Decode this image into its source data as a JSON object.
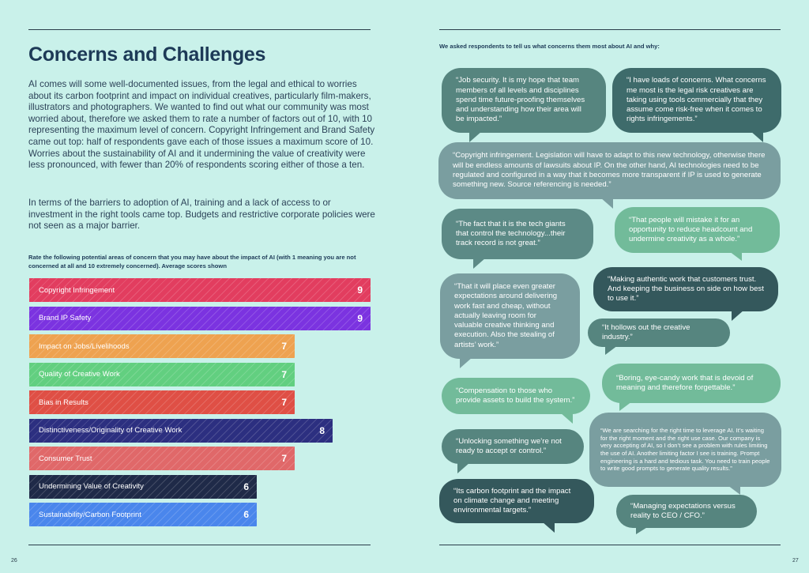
{
  "page": {
    "title": "Concerns and Challenges",
    "para1": "AI comes will some well-documented issues, from the legal and ethical to worries about its carbon footprint and impact on individual creatives, particularly film-makers, illustrators and photographers. We wanted to find out what our community was most worried about, therefore we asked them to rate a number of factors out of 10, with 10 representing the maximum level of concern. Copyright Infringement and Brand Safety came out top: half of respondents gave each of those issues a maximum score of 10. Worries about the sustainability of AI and it undermining the value of creativity were less pronounced, with fewer than 20% of respondents scoring either of those a ten.",
    "para2": "In terms of the barriers to adoption of AI, training and a lack of access to or investment in the right tools came top. Budgets and restrictive corporate policies were not seen as a major barrier.",
    "chart_caption": "Rate the following potential areas of concern that you may have about the impact of AI (with 1 meaning you are not concerned at all and 10 extremely concerned). Average scores shown",
    "page_left": "26",
    "page_right": "27",
    "quotes_intro": "We asked respondents to tell us what concerns them most about AI and why:"
  },
  "chart_data": {
    "type": "bar",
    "orientation": "horizontal",
    "categories": [
      "Copyright Infringement",
      "Brand IP Safety",
      "Impact on Jobs/Livelihoods",
      "Quality of Creative Work",
      "Bias in Results",
      "Distinctiveness/Originality of Creative Work",
      "Consumer Trust",
      "Undermining Value of Creativity",
      "Sustainability/Carbon Footprint"
    ],
    "values": [
      9,
      9,
      7,
      7,
      7,
      8,
      7,
      6,
      6
    ],
    "colors": [
      "#e23d5f",
      "#7b33e0",
      "#eea250",
      "#62cf80",
      "#df4f45",
      "#2c2f80",
      "#e06869",
      "#1f2a48",
      "#4a86ec"
    ],
    "xlim": [
      0,
      10
    ],
    "grid": false,
    "legend": "none"
  },
  "quotes": [
    {
      "text": "“Job security. It is my hope that team members of all levels and disciplines spend time future-proofing themselves and understanding how their area will be impacted.”",
      "color": "#56857f"
    },
    {
      "text": "“I have loads of concerns. What concerns me most is the legal risk creatives are taking using tools commercially that they assume come risk-free when it comes to rights infringements.”",
      "color": "#3e6b6b"
    },
    {
      "text": "“Copyright infringement. Legislation will have to adapt to this new technology, otherwise there will be endless amounts of lawsuits about IP. On the other hand, AI technologies need to be regulated and configured in a way that it becomes more transparent if IP is used to generate something new. Source referencing is needed.”",
      "color": "#7a9ea0"
    },
    {
      "text": "“The fact that it is the tech giants that control the technology...their track record is not great.”",
      "color": "#5c8a86"
    },
    {
      "text": "“That people will mistake it for an opportunity to reduce headcount and undermine creativity as a whole.”",
      "color": "#72bb9a"
    },
    {
      "text": "“That it will place even greater expectations around delivering work fast and cheap, without actually leaving room for valuable creative thinking and execution. Also the stealing of artists’ work.”",
      "color": "#7a9ea0"
    },
    {
      "text": "“Making authentic work that customers trust. And keeping the business on side on how best to use it.”",
      "color": "#34585c"
    },
    {
      "text": "“It hollows out the creative industry.”",
      "color": "#56857f"
    },
    {
      "text": "“Boring, eye-candy work that is devoid of meaning and therefore forgettable.”",
      "color": "#72bb9a"
    },
    {
      "text": "“Compensation to those who provide assets to build the system.”",
      "color": "#72bb9a"
    },
    {
      "text": "“We are searching for the right time to leverage AI. It’s waiting for the right moment and the right use case. Our company is very accepting of AI, so I don’t see a problem with rules limiting the use of AI. Another limiting factor I see is training. Prompt engineering is a hard and tedious task. You need to train people to write good prompts to generate quality results.”",
      "color": "#7a9ea0"
    },
    {
      "text": "“Unlocking something we’re not ready to accept or control.”",
      "color": "#56857f"
    },
    {
      "text": "“Its carbon footprint and the impact on climate change and meeting environmental targets.”",
      "color": "#34585c"
    },
    {
      "text": "“Managing expectations versus reality to CEO / CFO.”",
      "color": "#56857f"
    }
  ]
}
